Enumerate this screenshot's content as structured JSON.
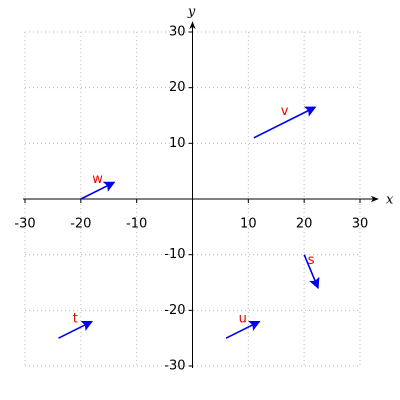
{
  "chart_data": {
    "type": "vector",
    "xlabel": "x",
    "ylabel": "y",
    "xlim": [
      -30,
      30
    ],
    "ylim": [
      -30,
      30
    ],
    "xticks": [
      -30,
      -20,
      -10,
      10,
      20,
      30
    ],
    "yticks": [
      -30,
      -20,
      -10,
      10,
      20,
      30
    ],
    "grid": true,
    "arrow_color": "#0000ee",
    "label_color": "#ee0000",
    "vectors": [
      {
        "name": "v",
        "x": 11,
        "y": 11,
        "dx": 11,
        "dy": 5.5
      },
      {
        "name": "w",
        "x": -20,
        "y": 0,
        "dx": 6,
        "dy": 3
      },
      {
        "name": "t",
        "x": -24,
        "y": -25,
        "dx": 6,
        "dy": 3
      },
      {
        "name": "u",
        "x": 6,
        "y": -25,
        "dx": 6,
        "dy": 3
      },
      {
        "name": "s",
        "x": 20,
        "y": -10,
        "dx": 2.5,
        "dy": -6
      }
    ]
  }
}
